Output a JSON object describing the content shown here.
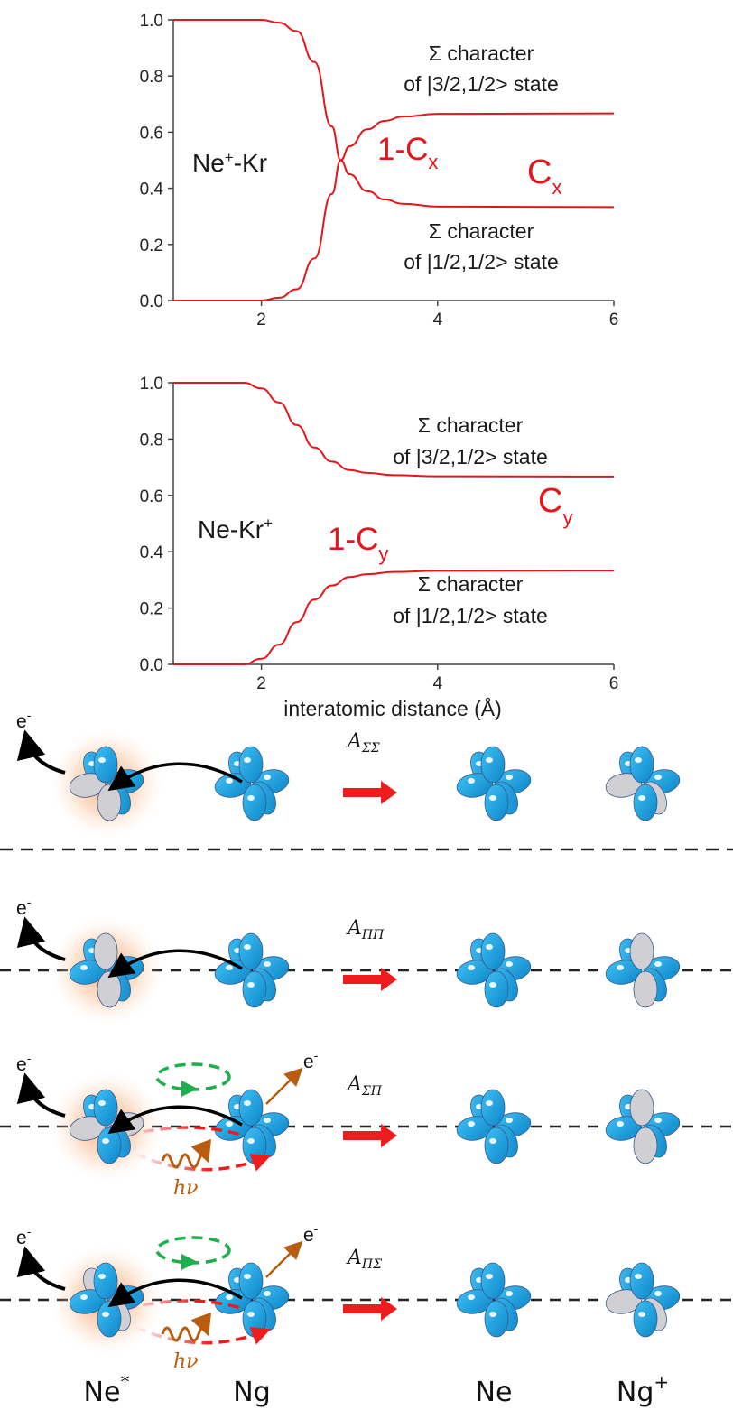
{
  "chart_data": [
    {
      "type": "line",
      "x_ticks": [
        "2",
        "4",
        "6"
      ],
      "y_ticks": [
        "0.0",
        "0.2",
        "0.4",
        "0.6",
        "0.8",
        "1.0"
      ],
      "xlim": [
        1,
        6
      ],
      "ylim": [
        0,
        1
      ],
      "molecule_label": {
        "base": "Ne",
        "sup": "+",
        "rest": "-Kr"
      },
      "annotations": {
        "upper_line1": "Σ character",
        "upper_line2": "of |3/2,1/2> state",
        "lower_line1": "Σ character",
        "lower_line2": "of |1/2,1/2> state",
        "curve_one_minus": "1-C",
        "curve_one_minus_sub": "x",
        "curve_c": "C",
        "curve_c_sub": "x"
      },
      "series": [
        {
          "x": [
            1.0,
            2.0,
            2.2,
            2.4,
            2.6,
            2.8,
            2.9,
            3.0,
            3.2,
            3.4,
            3.6,
            4.0,
            6.0
          ],
          "y": [
            1.0,
            1.0,
            0.99,
            0.96,
            0.85,
            0.62,
            0.5,
            0.45,
            0.39,
            0.36,
            0.345,
            0.335,
            0.333
          ]
        },
        {
          "x": [
            1.0,
            2.0,
            2.2,
            2.4,
            2.6,
            2.8,
            2.9,
            3.0,
            3.2,
            3.4,
            3.6,
            4.0,
            6.0
          ],
          "y": [
            0.0,
            0.0,
            0.01,
            0.04,
            0.15,
            0.38,
            0.5,
            0.55,
            0.61,
            0.64,
            0.655,
            0.665,
            0.667
          ]
        }
      ],
      "line_color": "#e8141b"
    },
    {
      "type": "line",
      "x_ticks": [
        "2",
        "4",
        "6"
      ],
      "y_ticks": [
        "0.0",
        "0.2",
        "0.4",
        "0.6",
        "0.8",
        "1.0"
      ],
      "xlim": [
        1,
        6
      ],
      "ylim": [
        0,
        1
      ],
      "xlabel": "interatomic distance (Å)",
      "molecule_label": {
        "base": "Ne-Kr",
        "sup": "+",
        "rest": ""
      },
      "annotations": {
        "upper_line1": "Σ character",
        "upper_line2": "of |3/2,1/2> state",
        "lower_line1": "Σ character",
        "lower_line2": "of |1/2,1/2> state",
        "curve_one_minus": "1-C",
        "curve_one_minus_sub": "y",
        "curve_c": "C",
        "curve_c_sub": "y"
      },
      "series": [
        {
          "x": [
            1.0,
            1.8,
            2.0,
            2.2,
            2.4,
            2.6,
            2.8,
            3.0,
            3.2,
            3.5,
            4.0,
            6.0
          ],
          "y": [
            1.0,
            1.0,
            0.98,
            0.93,
            0.85,
            0.77,
            0.72,
            0.69,
            0.68,
            0.672,
            0.668,
            0.667
          ]
        },
        {
          "x": [
            1.0,
            1.8,
            2.0,
            2.2,
            2.4,
            2.6,
            2.8,
            3.0,
            3.2,
            3.5,
            4.0,
            6.0
          ],
          "y": [
            0.0,
            0.0,
            0.02,
            0.07,
            0.15,
            0.23,
            0.28,
            0.31,
            0.32,
            0.328,
            0.332,
            0.333
          ]
        }
      ],
      "line_color": "#e8141b"
    }
  ],
  "diagram": {
    "electron_label": "e",
    "electron_sup": "-",
    "photon_label": "hν",
    "amplitudes": [
      {
        "base": "A",
        "sub": "ΣΣ"
      },
      {
        "base": "A",
        "sub": "ΠΠ"
      },
      {
        "base": "A",
        "sub": "ΣΠ"
      },
      {
        "base": "A",
        "sub": "ΠΣ"
      }
    ],
    "species": [
      {
        "base": "Ne",
        "sup": "*"
      },
      {
        "base": "Ng",
        "sup": ""
      },
      {
        "base": "Ne",
        "sup": ""
      },
      {
        "base": "Ng",
        "sup": "+"
      }
    ],
    "colors": {
      "orbital_blue": "#1aa3e6",
      "orbital_gray": "#d0d0d4",
      "arrow_red": "#ee1c1c",
      "emission_brown": "#b85c0f",
      "loop_green": "#1eae4b",
      "glow": "#f6a066"
    }
  }
}
